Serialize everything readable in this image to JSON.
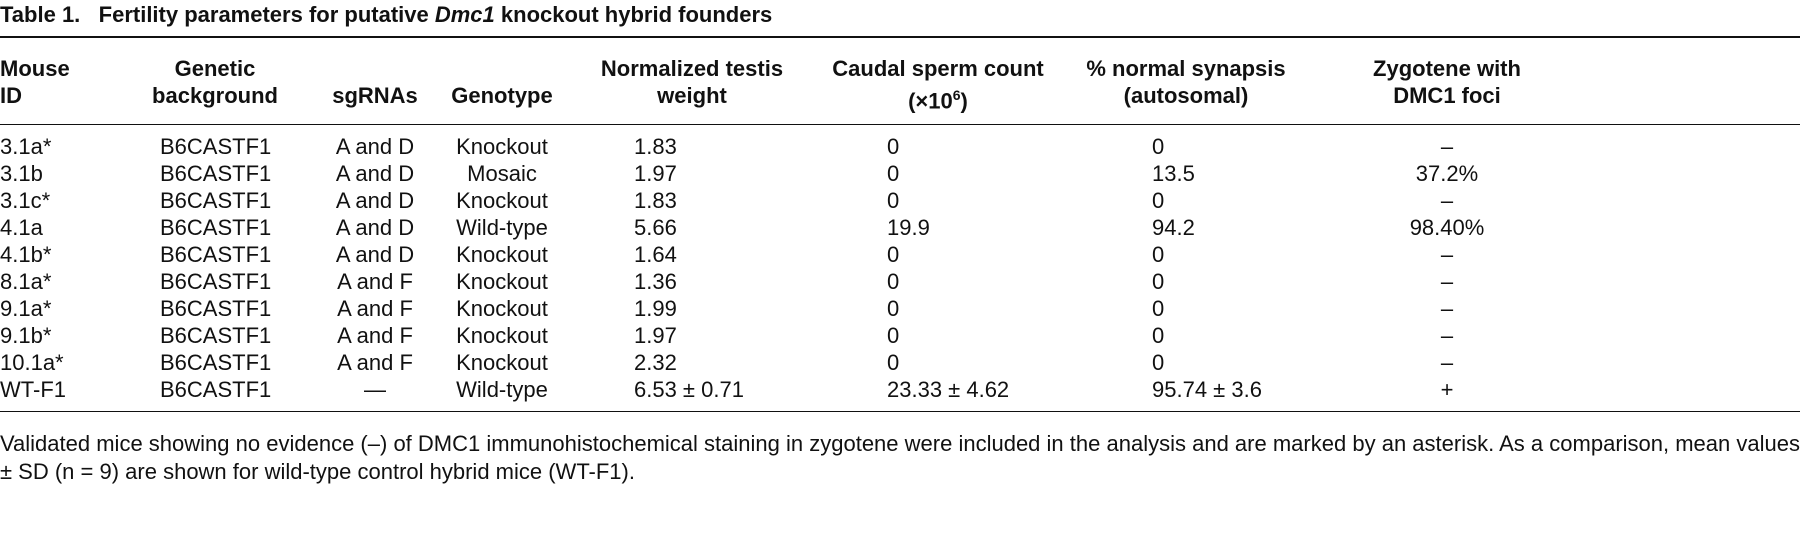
{
  "title": {
    "label": "Table 1.",
    "text_before": "Fertility parameters for putative ",
    "italic": "Dmc1",
    "text_after": " knockout hybrid founders"
  },
  "table": {
    "headers": [
      [
        "Mouse",
        "ID"
      ],
      [
        "Genetic",
        "background"
      ],
      [
        "sgRNAs"
      ],
      [
        "Genotype"
      ],
      [
        "Normalized testis",
        "weight"
      ],
      [
        "Caudal sperm count",
        "(×10",
        "6",
        ")"
      ],
      [
        "% normal synapsis",
        "(autosomal)"
      ],
      [
        "Zygotene with",
        "DMC1 foci"
      ]
    ],
    "rows": [
      [
        "3.1a*",
        "B6CASTF1",
        "A and D",
        "Knockout",
        "1.83",
        "0",
        "0",
        "–"
      ],
      [
        "3.1b",
        "B6CASTF1",
        "A and D",
        "Mosaic",
        "1.97",
        "0",
        "13.5",
        "37.2%"
      ],
      [
        "3.1c*",
        "B6CASTF1",
        "A and D",
        "Knockout",
        "1.83",
        "0",
        "0",
        "–"
      ],
      [
        "4.1a",
        "B6CASTF1",
        "A and D",
        "Wild-type",
        "5.66",
        "19.9",
        "94.2",
        "98.40%"
      ],
      [
        "4.1b*",
        "B6CASTF1",
        "A and D",
        "Knockout",
        "1.64",
        "0",
        "0",
        "–"
      ],
      [
        "8.1a*",
        "B6CASTF1",
        "A and F",
        "Knockout",
        "1.36",
        "0",
        "0",
        "–"
      ],
      [
        "9.1a*",
        "B6CASTF1",
        "A and F",
        "Knockout",
        "1.99",
        "0",
        "0",
        "–"
      ],
      [
        "9.1b*",
        "B6CASTF1",
        "A and F",
        "Knockout",
        "1.97",
        "0",
        "0",
        "–"
      ],
      [
        "10.1a*",
        "B6CASTF1",
        "A and F",
        "Knockout",
        "2.32",
        "0",
        "0",
        "–"
      ],
      [
        "WT-F1",
        "B6CASTF1",
        "—",
        "Wild-type",
        "6.53 ± 0.71",
        "23.33 ± 4.62",
        "95.74 ± 3.6",
        "+"
      ]
    ]
  },
  "footnote": "Validated mice showing no evidence (–) of DMC1 immunohistochemical staining in zygotene were included in the analysis and are marked by an asterisk. As a comparison, mean values ± SD (n = 9) are shown for wild-type control hybrid mice (WT-F1)."
}
